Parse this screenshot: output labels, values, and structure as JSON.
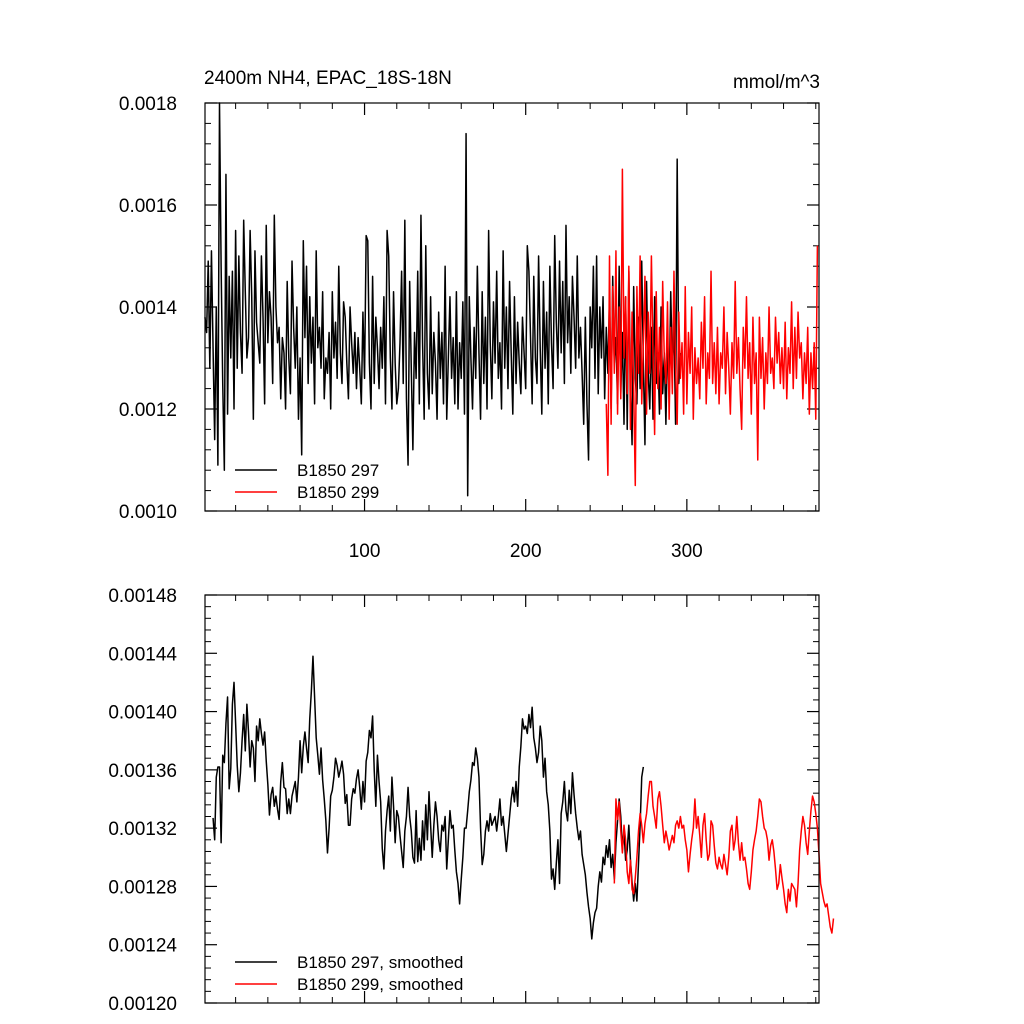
{
  "chart_data": [
    {
      "type": "line",
      "title": "2400m NH4, EPAC_18S-18N",
      "unit_label": "mmol/m^3",
      "xlim": [
        1,
        382
      ],
      "ylim": [
        0.001,
        0.0018
      ],
      "x_ticks": [
        100,
        200,
        300
      ],
      "x_tick_labels": [
        "100",
        "200",
        "300"
      ],
      "y_ticks": [
        0.001,
        0.0012,
        0.0014,
        0.0016,
        0.0018
      ],
      "y_tick_labels": [
        "0.0010",
        "0.0012",
        "0.0014",
        "0.0016",
        "0.0018"
      ],
      "legend_position": "bottom-left",
      "series": [
        {
          "name": "B1850 297",
          "color": "#000000",
          "x_start": 1,
          "values": [
            0.00138,
            0.00135,
            0.00149,
            0.00128,
            0.00151,
            0.00132,
            0.00114,
            0.0014,
            0.00109,
            0.0018,
            0.00148,
            0.00125,
            0.00108,
            0.00166,
            0.00119,
            0.00146,
            0.0013,
            0.00147,
            0.0012,
            0.00155,
            0.00128,
            0.0015,
            0.00135,
            0.00127,
            0.00157,
            0.00143,
            0.0013,
            0.00134,
            0.00155,
            0.00142,
            0.00118,
            0.00151,
            0.00137,
            0.00133,
            0.00129,
            0.0015,
            0.00138,
            0.00121,
            0.00156,
            0.00133,
            0.00143,
            0.00138,
            0.00125,
            0.00158,
            0.0014,
            0.00133,
            0.00136,
            0.00122,
            0.00134,
            0.00131,
            0.0012,
            0.00145,
            0.0013,
            0.00123,
            0.00149,
            0.00136,
            0.00128,
            0.0014,
            0.00118,
            0.0013,
            0.00111,
            0.00153,
            0.00134,
            0.00148,
            0.00125,
            0.00142,
            0.00129,
            0.00138,
            0.00121,
            0.00151,
            0.00132,
            0.00136,
            0.00128,
            0.00143,
            0.00122,
            0.0013,
            0.00127,
            0.00135,
            0.0012,
            0.00143,
            0.0013,
            0.00137,
            0.00126,
            0.00148,
            0.00131,
            0.00125,
            0.00141,
            0.00138,
            0.00129,
            0.00122,
            0.0014,
            0.00133,
            0.00127,
            0.00135,
            0.00124,
            0.00134,
            0.00128,
            0.00121,
            0.00139,
            0.00126,
            0.00154,
            0.00153,
            0.00129,
            0.0012,
            0.00146,
            0.00125,
            0.00138,
            0.00132,
            0.00124,
            0.00136,
            0.00128,
            0.00142,
            0.00121,
            0.00155,
            0.0015,
            0.0013,
            0.0012,
            0.00143,
            0.00129,
            0.00121,
            0.00124,
            0.00133,
            0.00147,
            0.00125,
            0.00157,
            0.00122,
            0.00109,
            0.00145,
            0.00128,
            0.00112,
            0.00135,
            0.00126,
            0.00147,
            0.00121,
            0.00158,
            0.00133,
            0.00118,
            0.00152,
            0.00127,
            0.0012,
            0.00142,
            0.00123,
            0.00135,
            0.00129,
            0.00118,
            0.00139,
            0.00126,
            0.00135,
            0.00121,
            0.00148,
            0.00118,
            0.0013,
            0.00142,
            0.00126,
            0.00134,
            0.00121,
            0.00143,
            0.0012,
            0.00133,
            0.00126,
            0.00141,
            0.00119,
            0.00174,
            0.00103,
            0.00142,
            0.0013,
            0.0012,
            0.00136,
            0.00126,
            0.00148,
            0.00131,
            0.00118,
            0.00143,
            0.00125,
            0.00138,
            0.0012,
            0.00155,
            0.00133,
            0.00122,
            0.00141,
            0.00129,
            0.00147,
            0.00126,
            0.00133,
            0.0012,
            0.00151,
            0.00128,
            0.0014,
            0.00124,
            0.00145,
            0.00131,
            0.00119,
            0.00142,
            0.00125,
            0.00137,
            0.00129,
            0.00123,
            0.00138,
            0.00131,
            0.00124,
            0.00152,
            0.00147,
            0.00134,
            0.00121,
            0.00146,
            0.0013,
            0.00125,
            0.0015,
            0.00132,
            0.00119,
            0.00145,
            0.00128,
            0.00139,
            0.00121,
            0.00148,
            0.00133,
            0.00124,
            0.00154,
            0.00137,
            0.00128,
            0.00149,
            0.00131,
            0.00145,
            0.00125,
            0.00156,
            0.00133,
            0.00142,
            0.00127,
            0.00146,
            0.00138,
            0.00128,
            0.0015,
            0.0013,
            0.00136,
            0.00127,
            0.00117,
            0.00138,
            0.00121,
            0.0011,
            0.0014,
            0.00132,
            0.00148,
            0.00126,
            0.0015,
            0.00123,
            0.0014,
            0.0013,
            0.00142,
            0.00122,
            0.00136,
            0.00127,
            0.00142,
            0.0012,
            0.00146,
            0.00129,
            0.00134,
            0.00121,
            0.00148,
            0.00123,
            0.00135,
            0.00117,
            0.00142,
            0.00116,
            0.00147,
            0.00125,
            0.00113,
            0.00144,
            0.00126,
            0.00121,
            0.00138,
            0.00124,
            0.00149,
            0.00129,
            0.00113,
            0.00145,
            0.00127,
            0.0012,
            0.00136,
            0.00118,
            0.00142,
            0.00125,
            0.00131,
            0.00119,
            0.0014,
            0.00123,
            0.00131,
            0.00117,
            0.00134,
            0.00123,
            0.00143,
            0.00128,
            0.00137,
            0.00117,
            0.00169,
            0.00125,
            0.00131
          ]
        },
        {
          "name": "B1850 299",
          "color": "#ff0000",
          "x_start": 250,
          "values": [
            0.00121,
            0.00107,
            0.0015,
            0.00117,
            0.00144,
            0.00127,
            0.00151,
            0.00119,
            0.0014,
            0.00122,
            0.00167,
            0.0013,
            0.00142,
            0.00123,
            0.00148,
            0.00116,
            0.00139,
            0.00124,
            0.00105,
            0.00144,
            0.00127,
            0.0015,
            0.00121,
            0.00133,
            0.00146,
            0.00119,
            0.00139,
            0.00127,
            0.0015,
            0.00131,
            0.00115,
            0.00143,
            0.00124,
            0.00136,
            0.0012,
            0.00145,
            0.0013,
            0.00125,
            0.00141,
            0.00118,
            0.00136,
            0.00123,
            0.00147,
            0.00128,
            0.00117,
            0.00139,
            0.00126,
            0.00133,
            0.00119,
            0.00144,
            0.00121,
            0.00135,
            0.00127,
            0.0014,
            0.00118,
            0.00132,
            0.00125,
            0.0013,
            0.00122,
            0.00137,
            0.00128,
            0.00142,
            0.00121,
            0.00131,
            0.00126,
            0.00147,
            0.00125,
            0.00133,
            0.00123,
            0.00136,
            0.00121,
            0.00131,
            0.00128,
            0.0014,
            0.00123,
            0.00135,
            0.00128,
            0.00119,
            0.00133,
            0.00126,
            0.00145,
            0.00127,
            0.00134,
            0.00124,
            0.00116,
            0.00136,
            0.00128,
            0.00142,
            0.00126,
            0.00133,
            0.00119,
            0.00138,
            0.00125,
            0.00131,
            0.0011,
            0.00138,
            0.00126,
            0.00134,
            0.0012,
            0.00131,
            0.00125,
            0.0014,
            0.00127,
            0.0013,
            0.00124,
            0.00138,
            0.00129,
            0.00135,
            0.00125,
            0.00132,
            0.00124,
            0.00137,
            0.00122,
            0.00132,
            0.00127,
            0.00141,
            0.00124,
            0.00136,
            0.00126,
            0.00139,
            0.0013,
            0.00133,
            0.00122,
            0.00131,
            0.00125,
            0.00136,
            0.00119,
            0.00131,
            0.00124,
            0.00133,
            0.00118,
            0.00152
          ]
        }
      ]
    },
    {
      "type": "line",
      "xlim": [
        1,
        382
      ],
      "ylim": [
        0.0012,
        0.00148
      ],
      "x_ticks": [
        100,
        200,
        300
      ],
      "y_ticks": [
        0.0012,
        0.00124,
        0.00128,
        0.00132,
        0.00136,
        0.0014,
        0.00144,
        0.00148
      ],
      "y_tick_labels": [
        "0.00120",
        "0.00124",
        "0.00128",
        "0.00132",
        "0.00136",
        "0.00140",
        "0.00144",
        "0.00148"
      ],
      "legend_position": "bottom-left",
      "series": [
        {
          "name": "B1850 297, smoothed",
          "color": "#000000",
          "x_start": 6,
          "values": [
            0.001327,
            0.001312,
            0.001355,
            0.001362,
            0.001362,
            0.00131,
            0.00137,
            0.001365,
            0.001392,
            0.00141,
            0.001347,
            0.001361,
            0.001405,
            0.00142,
            0.001392,
            0.001363,
            0.001345,
            0.001358,
            0.00138,
            0.001398,
            0.001373,
            0.001405,
            0.001386,
            0.001362,
            0.00138,
            0.001375,
            0.001352,
            0.00139,
            0.00138,
            0.001395,
            0.001385,
            0.001377,
            0.001386,
            0.001366,
            0.00135,
            0.001329,
            0.001343,
            0.001348,
            0.001335,
            0.001342,
            0.001333,
            0.001326,
            0.001352,
            0.001365,
            0.001348,
            0.001347,
            0.00133,
            0.00134,
            0.00133,
            0.001342,
            0.001347,
            0.001352,
            0.001338,
            0.001355,
            0.00138,
            0.001358,
            0.001376,
            0.001386,
            0.001375,
            0.001365,
            0.001395,
            0.001414,
            0.001438,
            0.00141,
            0.001382,
            0.00137,
            0.001357,
            0.001375,
            0.001353,
            0.00134,
            0.001325,
            0.001303,
            0.00132,
            0.001342,
            0.001346,
            0.001355,
            0.001368,
            0.001363,
            0.001355,
            0.00136,
            0.001366,
            0.001357,
            0.001337,
            0.001343,
            0.001322,
            0.001322,
            0.00134,
            0.001347,
            0.001344,
            0.001354,
            0.00136,
            0.001348,
            0.001333,
            0.001352,
            0.001338,
            0.001366,
            0.001372,
            0.001387,
            0.001382,
            0.001397,
            0.00136,
            0.001335,
            0.00137,
            0.001352,
            0.001338,
            0.001306,
            0.001292,
            0.001318,
            0.001332,
            0.001342,
            0.001318,
            0.001355,
            0.001335,
            0.00131,
            0.001332,
            0.001328,
            0.001315,
            0.001304,
            0.001293,
            0.001318,
            0.001328,
            0.001348,
            0.001328,
            0.001318,
            0.0013,
            0.001296,
            0.001332,
            0.001297,
            0.001313,
            0.001298,
            0.001325,
            0.001305,
            0.001336,
            0.001312,
            0.001345,
            0.001322,
            0.0013,
            0.001322,
            0.001338,
            0.001328,
            0.001312,
            0.001304,
            0.001322,
            0.001318,
            0.001328,
            0.001292,
            0.001312,
            0.001332,
            0.00132,
            0.001322,
            0.001305,
            0.00129,
            0.001282,
            0.001268,
            0.001285,
            0.0013,
            0.00132,
            0.00132,
            0.001332,
            0.001345,
            0.001353,
            0.001365,
            0.001363,
            0.001375,
            0.001368,
            0.001355,
            0.00132,
            0.001295,
            0.001302,
            0.001318,
            0.001325,
            0.001318,
            0.00133,
            0.001322,
            0.001325,
            0.001328,
            0.001318,
            0.001328,
            0.00134,
            0.001322,
            0.001328,
            0.001316,
            0.001304,
            0.001316,
            0.001328,
            0.00134,
            0.001348,
            0.001338,
            0.001352,
            0.001335,
            0.001362,
            0.001376,
            0.001395,
            0.001388,
            0.00139,
            0.001385,
            0.001398,
            0.001389,
            0.001403,
            0.001382,
            0.001375,
            0.001365,
            0.001372,
            0.00139,
            0.00138,
            0.001355,
            0.001368,
            0.001345,
            0.001336,
            0.001318,
            0.001285,
            0.001292,
            0.001278,
            0.001296,
            0.001312,
            0.001282,
            0.00133,
            0.001338,
            0.001352,
            0.001332,
            0.001325,
            0.001346,
            0.00133,
            0.001358,
            0.001343,
            0.00133,
            0.00132,
            0.001312,
            0.001318,
            0.001302,
            0.001295,
            0.001288,
            0.001276,
            0.001266,
            0.001258,
            0.001244,
            0.001255,
            0.001262,
            0.001265,
            0.00128,
            0.00129,
            0.001283,
            0.0013,
            0.001295,
            0.001308,
            0.0013,
            0.001312,
            0.001293,
            0.001302,
            0.001285,
            0.00131,
            0.001325,
            0.00134,
            0.001328,
            0.001305,
            0.001318,
            0.001298,
            0.001305,
            0.001322,
            0.001298,
            0.001283,
            0.00127,
            0.001282,
            0.00127,
            0.001296,
            0.001322,
            0.001355,
            0.001362
          ]
        },
        {
          "name": "B1850 299, smoothed",
          "color": "#ff0000",
          "x_start": 255,
          "values": [
            0.001282,
            0.00134,
            0.001326,
            0.001338,
            0.001318,
            0.001303,
            0.001322,
            0.001312,
            0.00129,
            0.001282,
            0.001298,
            0.001278,
            0.001275,
            0.001286,
            0.0013,
            0.001318,
            0.00133,
            0.001322,
            0.00131,
            0.001323,
            0.00133,
            0.001342,
            0.001352,
            0.001352,
            0.001335,
            0.001328,
            0.00132,
            0.00134,
            0.001345,
            0.001335,
            0.001322,
            0.00131,
            0.001318,
            0.001312,
            0.001305,
            0.00131,
            0.001315,
            0.00131,
            0.001322,
            0.001325,
            0.00132,
            0.001328,
            0.00132,
            0.001322,
            0.001312,
            0.001305,
            0.00129,
            0.001302,
            0.001312,
            0.00132,
            0.00134,
            0.00132,
            0.001328,
            0.001315,
            0.0013,
            0.001322,
            0.00133,
            0.001312,
            0.001298,
            0.001302,
            0.001325,
            0.001322,
            0.001308,
            0.001296,
            0.001292,
            0.0013,
            0.001295,
            0.001292,
            0.001302,
            0.001295,
            0.001288,
            0.0013,
            0.001318,
            0.001322,
            0.001305,
            0.001312,
            0.001328,
            0.00131,
            0.001298,
            0.00131,
            0.001298,
            0.0013,
            0.001292,
            0.001282,
            0.001278,
            0.00129,
            0.001305,
            0.001312,
            0.001318,
            0.001328,
            0.00134,
            0.001338,
            0.001328,
            0.00132,
            0.001318,
            0.001312,
            0.001298,
            0.001308,
            0.001312,
            0.001304,
            0.001292,
            0.001278,
            0.001282,
            0.001295,
            0.001286,
            0.001278,
            0.001268,
            0.001262,
            0.001278,
            0.00127,
            0.001282,
            0.00128,
            0.001278,
            0.001266,
            0.001282,
            0.001305,
            0.001318,
            0.001328,
            0.001322,
            0.00131,
            0.001302,
            0.001318,
            0.001332,
            0.001342,
            0.001338,
            0.00133,
            0.00132,
            0.001302,
            0.001282,
            0.001276,
            0.00127,
            0.001266,
            0.001268,
            0.00126,
            0.001252,
            0.001248,
            0.001258
          ]
        }
      ]
    }
  ]
}
